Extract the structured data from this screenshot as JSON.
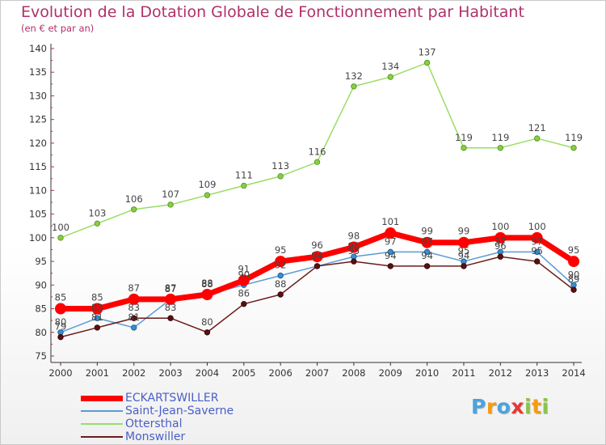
{
  "title": "Evolution de la Dotation Globale de Fonctionnement par Habitant",
  "subtitle": "(en € et par an)",
  "logo": {
    "letters": [
      "P",
      "r",
      "o",
      "x",
      "i",
      "t",
      "i"
    ]
  },
  "colors": {
    "title": "#b0306a",
    "axis": "#333333",
    "grid_tick": "#cc2233",
    "legend_text": "#4a5fc7"
  },
  "chart_data": {
    "type": "line",
    "title": "Evolution de la Dotation Globale de Fonctionnement par Habitant",
    "subtitle": "(en € et par an)",
    "x": [
      "2000",
      "2001",
      "2002",
      "2003",
      "2004",
      "2005",
      "2006",
      "2007",
      "2008",
      "2009",
      "2010",
      "2011",
      "2012",
      "2013",
      "2014"
    ],
    "ylim": [
      75,
      140
    ],
    "yticks": [
      75,
      80,
      85,
      90,
      95,
      100,
      105,
      110,
      115,
      120,
      125,
      130,
      135,
      140
    ],
    "grid": false,
    "legend_position": "bottom-left",
    "series": [
      {
        "name": "ECKARTSWILLER",
        "color": "#ff0000",
        "values": [
          85,
          85,
          87,
          87,
          88,
          91,
          95,
          96,
          98,
          101,
          99,
          99,
          100,
          100,
          95
        ]
      },
      {
        "name": "Saint-Jean-Saverne",
        "color": "#5b9bd5",
        "values": [
          80,
          83,
          81,
          87,
          88,
          90,
          92,
          94,
          96,
          97,
          97,
          95,
          97,
          97,
          90
        ]
      },
      {
        "name": "Ottersthal",
        "color": "#99dd66",
        "values": [
          100,
          103,
          106,
          107,
          109,
          111,
          113,
          116,
          132,
          134,
          137,
          119,
          119,
          121,
          119
        ]
      },
      {
        "name": "Monswiller",
        "color": "#6b1c1c",
        "values": [
          79,
          81,
          83,
          83,
          80,
          86,
          88,
          94,
          95,
          94,
          94,
          94,
          96,
          95,
          89
        ]
      }
    ]
  }
}
